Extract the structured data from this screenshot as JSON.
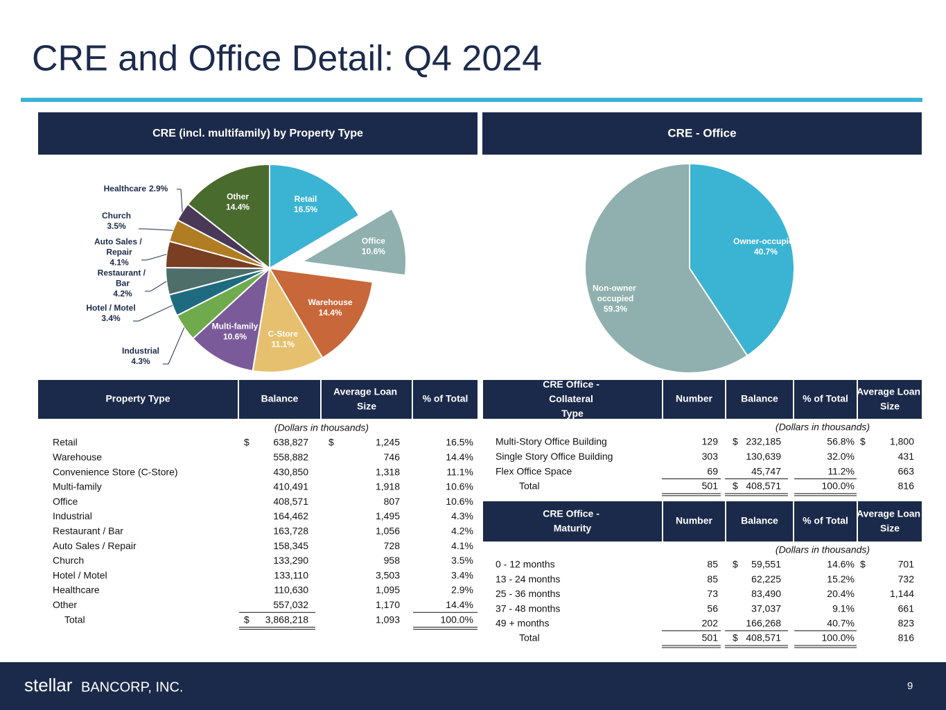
{
  "header": {
    "title": "CRE and Office Detail: Q4 2024"
  },
  "chart_data": [
    {
      "type": "pie",
      "title": "CRE (incl. multifamily) by Property Type",
      "categories": [
        "Retail",
        "Office",
        "Warehouse",
        "C-Store",
        "Multi-family",
        "Industrial",
        "Hotel / Motel",
        "Restaurant / Bar",
        "Auto Sales / Repair",
        "Church",
        "Healthcare",
        "Other"
      ],
      "values": [
        16.5,
        10.6,
        14.4,
        11.1,
        10.6,
        4.3,
        3.4,
        4.2,
        4.1,
        3.5,
        2.9,
        14.4
      ],
      "value_labels": [
        "16.5%",
        "10.6%",
        "14.4%",
        "11.1%",
        "10.6%",
        "4.3%",
        "3.4%",
        "4.2%",
        "4.1%",
        "3.5%",
        "2.9%",
        "14.4%"
      ],
      "colors": [
        "#3bb4d4",
        "#8fb0ae",
        "#c8673a",
        "#e6c06e",
        "#7b5a9a",
        "#6fab4c",
        "#1e6b80",
        "#4e6e6a",
        "#7a3e22",
        "#b07d23",
        "#4a3858",
        "#4a6b2e"
      ],
      "explode": [
        false,
        true,
        false,
        false,
        false,
        false,
        false,
        false,
        false,
        false,
        false,
        false
      ]
    },
    {
      "type": "pie",
      "title": "CRE - Office",
      "categories": [
        "Owner-occupied",
        "Non-owner occupied"
      ],
      "values": [
        40.7,
        59.3
      ],
      "value_labels": [
        "40.7%",
        "59.3%"
      ],
      "colors": [
        "#3bb4d4",
        "#8fb0ae"
      ],
      "explode": [
        false,
        false
      ]
    }
  ],
  "tables": [
    {
      "headers": [
        "Property Type",
        "Balance",
        "Average Loan Size",
        "% of Total"
      ],
      "note": "(Dollars in thousands)",
      "rows": [
        [
          "Retail",
          "$",
          "638,827",
          "$",
          "1,245",
          "16.5%"
        ],
        [
          "Warehouse",
          null,
          "558,882",
          null,
          "746",
          "14.4%"
        ],
        [
          "Convenience Store (C-Store)",
          null,
          "430,850",
          null,
          "1,318",
          "11.1%"
        ],
        [
          "Multi-family",
          null,
          "410,491",
          null,
          "1,918",
          "10.6%"
        ],
        [
          "Office",
          null,
          "408,571",
          null,
          "807",
          "10.6%"
        ],
        [
          "Industrial",
          null,
          "164,462",
          null,
          "1,495",
          "4.3%"
        ],
        [
          "Restaurant / Bar",
          null,
          "163,728",
          null,
          "1,056",
          "4.2%"
        ],
        [
          "Auto Sales / Repair",
          null,
          "158,345",
          null,
          "728",
          "4.1%"
        ],
        [
          "Church",
          null,
          "133,290",
          null,
          "958",
          "3.5%"
        ],
        [
          "Hotel / Motel",
          null,
          "133,110",
          null,
          "3,503",
          "3.4%"
        ],
        [
          "Healthcare",
          null,
          "110,630",
          null,
          "1,095",
          "2.9%"
        ],
        [
          "Other",
          null,
          "557,032",
          null,
          "1,170",
          "14.4%"
        ],
        [
          "Total",
          "$",
          "3,868,218",
          null,
          "1,093",
          "100.0%"
        ]
      ]
    },
    {
      "headers": [
        "CRE Office - Collateral Type",
        "Number",
        "Balance",
        "% of Total",
        "Average Loan Size"
      ],
      "note": "(Dollars in thousands)",
      "rows": [
        [
          "Multi-Story Office Building",
          "129",
          "$",
          "232,185",
          "56.8%",
          "$",
          "1,800"
        ],
        [
          "Single Story Office Building",
          "303",
          null,
          "130,639",
          "32.0%",
          null,
          "431"
        ],
        [
          "Flex Office Space",
          "69",
          null,
          "45,747",
          "11.2%",
          null,
          "663"
        ],
        [
          "Total",
          "501",
          "$",
          "408,571",
          "100.0%",
          null,
          "816"
        ]
      ]
    },
    {
      "headers": [
        "CRE Office - Maturity",
        "Number",
        "Balance",
        "% of Total",
        "Average Loan Size"
      ],
      "note": "(Dollars in thousands)",
      "rows": [
        [
          "0 - 12 months",
          "85",
          "$",
          "59,551",
          "14.6%",
          "$",
          "701"
        ],
        [
          "13 - 24 months",
          "85",
          null,
          "62,225",
          "15.2%",
          null,
          "732"
        ],
        [
          "25 - 36 months",
          "73",
          null,
          "83,490",
          "20.4%",
          null,
          "1,144"
        ],
        [
          "37 - 48 months",
          "56",
          null,
          "37,037",
          "9.1%",
          null,
          "661"
        ],
        [
          "49 + months",
          "202",
          null,
          "166,268",
          "40.7%",
          null,
          "823"
        ],
        [
          "Total",
          "501",
          "$",
          "408,571",
          "100.0%",
          null,
          "816"
        ]
      ]
    }
  ],
  "footer": {
    "logo": "stellar",
    "company": "BANCORP, INC.",
    "page": "9"
  }
}
